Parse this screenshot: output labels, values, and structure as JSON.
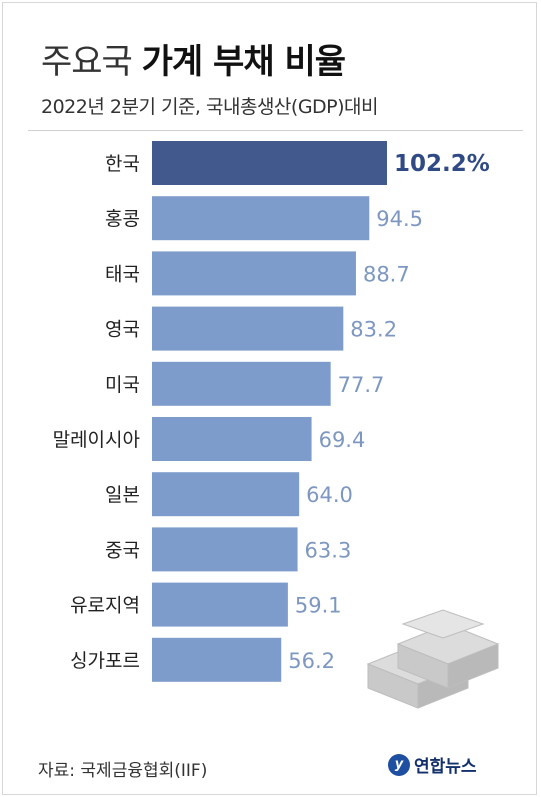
{
  "title_light": "주요국",
  "title_bold": "가계 부채 비율",
  "subtitle": "2022년 2분기 기준, 국내총생산(GDP)대비",
  "source": "자료: 국제금융협회(IIF)",
  "logo": "연합뉴스",
  "colors": {
    "bar_highlight": "#42598d",
    "bar_default": "#7e9ccb",
    "value_default": "#7d97c0",
    "value_highlight": "#2f4a84"
  },
  "chart_data": {
    "type": "bar",
    "orientation": "horizontal",
    "title": "주요국 가계 부채 비율",
    "subtitle": "2022년 2분기 기준, 국내총생산(GDP)대비",
    "categories": [
      "한국",
      "홍콩",
      "태국",
      "영국",
      "미국",
      "말레이시아",
      "일본",
      "중국",
      "유로지역",
      "싱가포르"
    ],
    "values": [
      102.2,
      94.5,
      88.7,
      83.2,
      77.7,
      69.4,
      64.0,
      63.3,
      59.1,
      56.2
    ],
    "value_labels": [
      "102.2%",
      "94.5",
      "88.7",
      "83.2",
      "77.7",
      "69.4",
      "64.0",
      "63.3",
      "59.1",
      "56.2"
    ],
    "highlight_index": 0,
    "xlim": [
      0,
      102.2
    ],
    "grid": false
  }
}
